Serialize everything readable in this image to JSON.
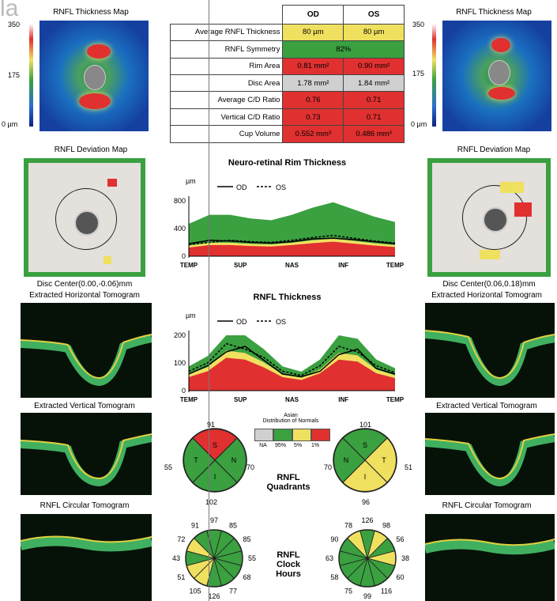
{
  "corner_text": "la",
  "left": {
    "thickness_title": "RNFL Thickness Map",
    "scale_top": "350",
    "scale_mid": "175",
    "scale_bot": "0 μm",
    "deviation_title": "RNFL Deviation Map",
    "disc_center": "Disc Center(0.00,-0.06)mm",
    "horiz_title": "Extracted Horizontal Tomogram",
    "vert_title": "Extracted Vertical Tomogram",
    "circ_title": "RNFL Circular Tomogram"
  },
  "right": {
    "thickness_title": "RNFL Thickness Map",
    "scale_top": "350",
    "scale_mid": "175",
    "scale_bot": "0 μm",
    "deviation_title": "RNFL Deviation Map",
    "disc_center": "Disc Center(0.06,0.18)mm",
    "horiz_title": "Extracted Horizontal Tomogram",
    "vert_title": "Extracted Vertical Tomogram",
    "circ_title": "RNFL Circular Tomogram"
  },
  "table": {
    "head_od": "OD",
    "head_os": "OS",
    "rows": [
      {
        "label": "Average RNFL Thickness",
        "od": "80 µm",
        "os": "80 µm",
        "od_color": "#f0e060",
        "os_color": "#f0e060"
      },
      {
        "label": "RNFL Symmetry",
        "merged": "82%",
        "color": "#3aa040"
      },
      {
        "label": "Rim Area",
        "od": "0.81 mm²",
        "os": "0.90 mm²",
        "od_color": "#e03030",
        "os_color": "#e03030"
      },
      {
        "label": "Disc Area",
        "od": "1.78 mm²",
        "os": "1.84 mm²",
        "od_color": "#d0d0d0",
        "os_color": "#d0d0d0"
      },
      {
        "label": "Average C/D Ratio",
        "od": "0.76",
        "os": "0.71",
        "od_color": "#e03030",
        "os_color": "#e03030"
      },
      {
        "label": "Vertical C/D Ratio",
        "od": "0.73",
        "os": "0.71",
        "od_color": "#e03030",
        "os_color": "#e03030"
      },
      {
        "label": "Cup Volume",
        "od": "0.552 mm³",
        "os": "0.486 mm³",
        "od_color": "#e03030",
        "os_color": "#e03030"
      }
    ]
  },
  "chart_data": [
    {
      "type": "area",
      "title": "Neuro-retinal Rim Thickness",
      "ylabel": "µm",
      "ylim": [
        0,
        800
      ],
      "yticks": [
        "800",
        "400",
        "0"
      ],
      "xticks": [
        "TEMP",
        "SUP",
        "NAS",
        "INF",
        "TEMP"
      ],
      "legend": [
        "OD",
        "OS"
      ],
      "series": [
        {
          "name": "OD",
          "values": [
            180,
            230,
            220,
            200,
            190,
            210,
            250,
            260,
            240,
            210,
            180
          ]
        },
        {
          "name": "OS",
          "values": [
            170,
            200,
            230,
            210,
            200,
            230,
            270,
            300,
            260,
            220,
            190
          ]
        }
      ]
    },
    {
      "type": "area",
      "title": "RNFL Thickness",
      "ylabel": "µm",
      "ylim": [
        0,
        200
      ],
      "yticks": [
        "200",
        "100",
        "0"
      ],
      "xticks": [
        "TEMP",
        "SUP",
        "NAS",
        "INF",
        "TEMP"
      ],
      "legend": [
        "OD",
        "OS"
      ],
      "series": [
        {
          "name": "OD",
          "values": [
            60,
            90,
            140,
            160,
            110,
            60,
            50,
            70,
            130,
            150,
            80,
            60
          ]
        },
        {
          "name": "OS",
          "values": [
            70,
            100,
            170,
            150,
            120,
            70,
            55,
            90,
            160,
            140,
            90,
            65
          ]
        }
      ]
    }
  ],
  "legend": {
    "title_line1": "Asian",
    "title_line2": "Distribution of Normals",
    "labels": [
      "NA",
      "95%",
      "5%",
      "1%"
    ]
  },
  "quadrants": {
    "label_line1": "RNFL",
    "label_line2": "Quadrants",
    "od": {
      "top": "91",
      "left": "55",
      "right": "70",
      "bottom": "102",
      "S": "S",
      "N": "N",
      "I": "I",
      "T": "T"
    },
    "os": {
      "top": "101",
      "left": "70",
      "right": "51",
      "bottom": "96",
      "S": "S",
      "N": "N",
      "I": "I",
      "T": "T"
    }
  },
  "clock": {
    "label_line1": "RNFL",
    "label_line2": "Clock",
    "label_line3": "Hours",
    "od": [
      "97",
      "85",
      "85",
      "55",
      "68",
      "77",
      "126",
      "105",
      "51",
      "43",
      "72",
      "91"
    ],
    "os": [
      "126",
      "98",
      "56",
      "38",
      "60",
      "116",
      "99",
      "75",
      "58",
      "63",
      "90",
      "78"
    ]
  },
  "colors": {
    "green": "#3aa040",
    "yellow": "#f0e060",
    "red": "#e03030",
    "gray": "#d0d0d0"
  }
}
